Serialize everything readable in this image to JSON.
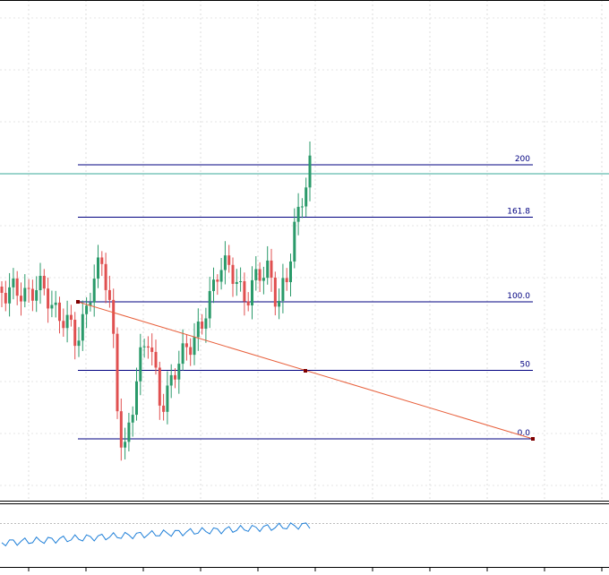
{
  "fibonacci": {
    "levels": [
      {
        "value": 200,
        "label": "200"
      },
      {
        "value": 161.8,
        "label": "161.8"
      },
      {
        "value": 100,
        "label": "100.0"
      },
      {
        "value": 50,
        "label": "50"
      },
      {
        "value": 0,
        "label": "0.0"
      }
    ]
  }
}
